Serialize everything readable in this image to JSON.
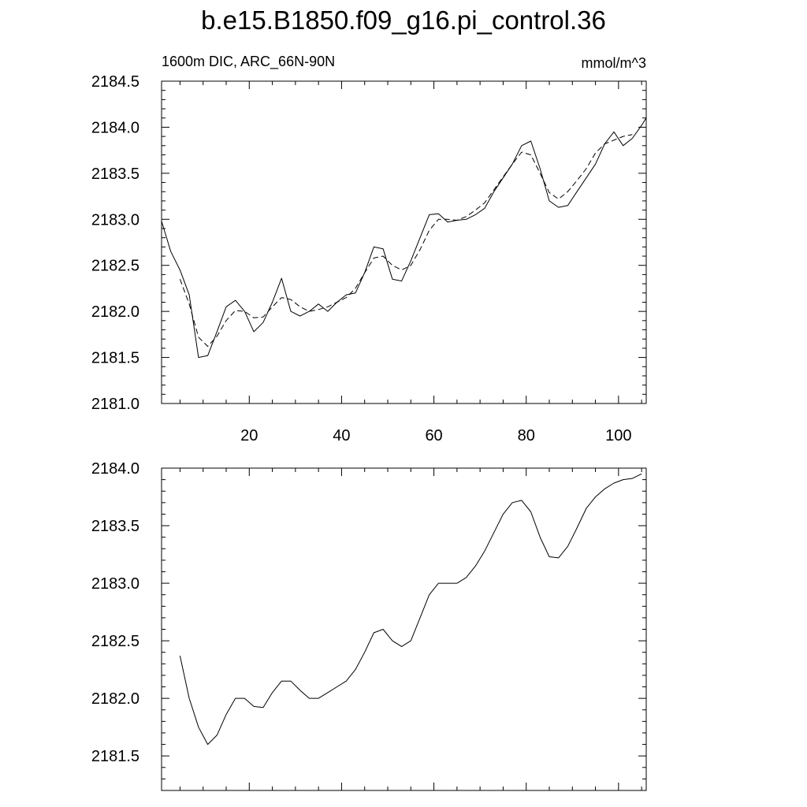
{
  "title": "b.e15.B1850.f09_g16.pi_control.36",
  "chart_data": [
    {
      "type": "line",
      "left_label": "1600m DIC, ARC_66N-90N",
      "right_label": "mmol/m^3",
      "xlim": [
        1,
        106
      ],
      "ylim": [
        2181.0,
        2184.5
      ],
      "x_ticks": [
        20,
        40,
        60,
        80,
        100
      ],
      "x_tick_labels": [
        "20",
        "40",
        "60",
        "80",
        "100"
      ],
      "y_ticks": [
        2181.0,
        2181.5,
        2182.0,
        2182.5,
        2183.0,
        2183.5,
        2184.0,
        2184.5
      ],
      "y_tick_labels": [
        "2181.0",
        "2181.5",
        "2182.0",
        "2182.5",
        "2183.0",
        "2183.5",
        "2184.0",
        "2184.5"
      ],
      "legend": "none",
      "grid": false,
      "series": [
        {
          "style": "solid",
          "x": [
            1,
            3,
            5,
            7,
            9,
            11,
            13,
            15,
            17,
            19,
            21,
            23,
            25,
            27,
            29,
            31,
            33,
            35,
            37,
            39,
            41,
            43,
            45,
            47,
            49,
            51,
            53,
            55,
            57,
            59,
            61,
            63,
            65,
            67,
            69,
            71,
            73,
            75,
            77,
            79,
            81,
            83,
            85,
            87,
            89,
            91,
            93,
            95,
            97,
            99,
            101,
            103,
            105,
            106
          ],
          "y": [
            2182.98,
            2182.65,
            2182.45,
            2182.18,
            2181.5,
            2181.52,
            2181.78,
            2182.05,
            2182.12,
            2182.0,
            2181.78,
            2181.88,
            2182.1,
            2182.36,
            2182.0,
            2181.95,
            2182.0,
            2182.08,
            2182.0,
            2182.1,
            2182.18,
            2182.2,
            2182.42,
            2182.7,
            2182.68,
            2182.35,
            2182.33,
            2182.55,
            2182.8,
            2183.05,
            2183.06,
            2182.97,
            2182.99,
            2183.0,
            2183.05,
            2183.12,
            2183.3,
            2183.45,
            2183.6,
            2183.8,
            2183.85,
            2183.55,
            2183.2,
            2183.13,
            2183.15,
            2183.3,
            2183.45,
            2183.6,
            2183.82,
            2183.95,
            2183.8,
            2183.88,
            2184.02,
            2184.1
          ]
        },
        {
          "style": "dashed",
          "x": [
            5,
            7,
            9,
            11,
            13,
            15,
            17,
            19,
            21,
            23,
            25,
            27,
            29,
            31,
            33,
            35,
            37,
            39,
            41,
            43,
            45,
            47,
            49,
            51,
            53,
            55,
            57,
            59,
            61,
            63,
            65,
            67,
            69,
            71,
            73,
            75,
            77,
            79,
            81,
            83,
            85,
            87,
            89,
            91,
            93,
            95,
            97,
            99,
            101,
            103
          ],
          "y": [
            2182.35,
            2182.08,
            2181.72,
            2181.62,
            2181.73,
            2181.9,
            2182.01,
            2182.0,
            2181.93,
            2181.94,
            2182.05,
            2182.15,
            2182.13,
            2182.05,
            2182.0,
            2182.02,
            2182.05,
            2182.1,
            2182.15,
            2182.25,
            2182.42,
            2182.58,
            2182.6,
            2182.5,
            2182.45,
            2182.5,
            2182.67,
            2182.88,
            2183.0,
            2183.0,
            2182.99,
            2183.03,
            2183.1,
            2183.18,
            2183.32,
            2183.46,
            2183.6,
            2183.73,
            2183.7,
            2183.5,
            2183.29,
            2183.22,
            2183.3,
            2183.42,
            2183.55,
            2183.72,
            2183.82,
            2183.86,
            2183.9,
            2183.92
          ]
        }
      ]
    },
    {
      "type": "line",
      "xlim": [
        1,
        106
      ],
      "ylim": [
        2181.2,
        2184.0
      ],
      "x_ticks": [
        20,
        40,
        60,
        80,
        100
      ],
      "y_ticks": [
        2181.5,
        2182.0,
        2182.5,
        2183.0,
        2183.5,
        2184.0
      ],
      "y_tick_labels": [
        "2181.5",
        "2182.0",
        "2182.5",
        "2183.0",
        "2183.5",
        "2184.0"
      ],
      "legend": "none",
      "grid": false,
      "series": [
        {
          "style": "solid",
          "x": [
            5,
            7,
            9,
            11,
            13,
            15,
            17,
            19,
            21,
            23,
            25,
            27,
            29,
            31,
            33,
            35,
            37,
            39,
            41,
            43,
            45,
            47,
            49,
            51,
            53,
            55,
            57,
            59,
            61,
            63,
            65,
            67,
            69,
            71,
            73,
            75,
            77,
            79,
            81,
            83,
            85,
            87,
            89,
            91,
            93,
            95,
            97,
            99,
            101,
            103,
            105
          ],
          "y": [
            2182.37,
            2182.0,
            2181.75,
            2181.6,
            2181.68,
            2181.86,
            2182.0,
            2182.0,
            2181.93,
            2181.92,
            2182.05,
            2182.15,
            2182.15,
            2182.07,
            2182.0,
            2182.0,
            2182.05,
            2182.1,
            2182.15,
            2182.25,
            2182.4,
            2182.57,
            2182.6,
            2182.5,
            2182.45,
            2182.5,
            2182.7,
            2182.9,
            2183.0,
            2183.0,
            2183.0,
            2183.05,
            2183.15,
            2183.28,
            2183.44,
            2183.6,
            2183.7,
            2183.72,
            2183.62,
            2183.4,
            2183.23,
            2183.22,
            2183.32,
            2183.48,
            2183.65,
            2183.75,
            2183.82,
            2183.87,
            2183.9,
            2183.91,
            2183.95
          ]
        }
      ]
    }
  ]
}
